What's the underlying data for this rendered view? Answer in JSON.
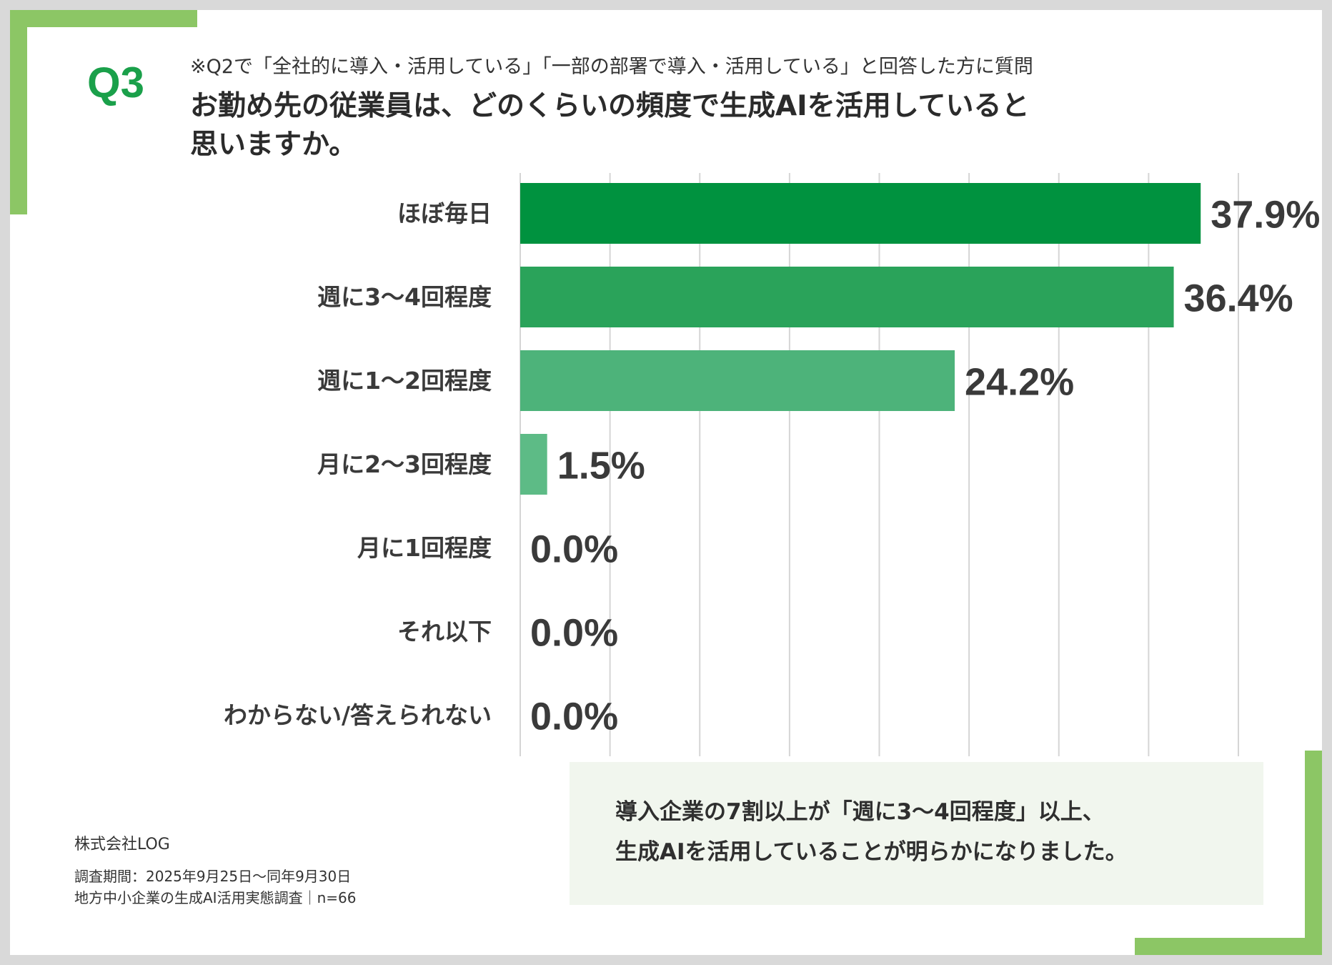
{
  "colors": {
    "accent": "#8cc665",
    "brand": "#1aa04a",
    "bar_colors": [
      "#00923f",
      "#2aa35a",
      "#4db37a",
      "#5dbb86",
      "#5dbb86",
      "#5dbb86",
      "#5dbb86"
    ],
    "grid": "#d5d5d5",
    "background": "#d9d9d9"
  },
  "header": {
    "q_number": "Q3",
    "note": "※Q2で「全社的に導入・活用している」「一部の部署で導入・活用している」と回答した方に質問",
    "title_line1": "お勤め先の従業員は、どのくらいの頻度で生成AIを活用していると",
    "title_line2": "思いますか。"
  },
  "chart_data": {
    "type": "bar",
    "orientation": "horizontal",
    "categories": [
      "ほぼ毎日",
      "週に3～4回程度",
      "週に1～2回程度",
      "月に2～3回程度",
      "月に1回程度",
      "それ以下",
      "わからない/答えられない"
    ],
    "values": [
      37.9,
      36.4,
      24.2,
      1.5,
      0.0,
      0.0,
      0.0
    ],
    "value_labels": [
      "37.9%",
      "36.4%",
      "24.2%",
      "1.5%",
      "0.0%",
      "0.0%",
      "0.0%"
    ],
    "xlim": [
      0,
      40
    ],
    "grid_step": 5,
    "grid": true,
    "title": "お勤め先の従業員は、どのくらいの頻度で生成AIを活用していると思いますか。"
  },
  "footer": {
    "company": "株式会社LOG",
    "period": "調査期間：2025年9月25日～同年9月30日",
    "survey": "地方中小企業の生成AI活用実態調査｜n=66"
  },
  "summary": {
    "line1": "導入企業の7割以上が「週に3～4回程度」以上、",
    "line2": "生成AIを活用していることが明らかになりました。"
  }
}
